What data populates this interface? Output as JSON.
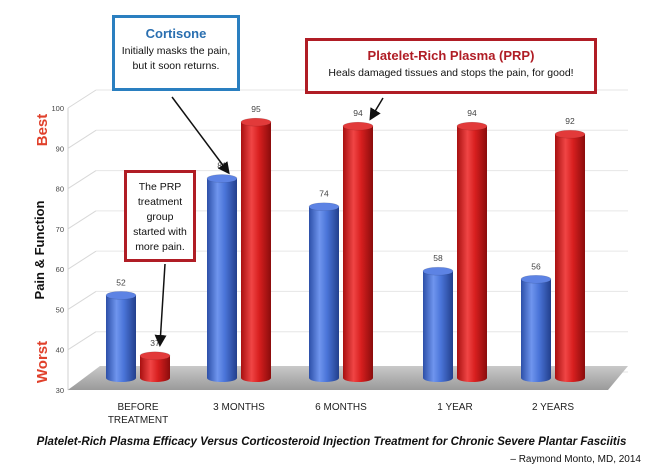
{
  "chart_data": {
    "type": "bar",
    "categories": [
      "BEFORE\nTREATMENT",
      "3 MONTHS",
      "6 MONTHS",
      "1 YEAR",
      "2 YEARS"
    ],
    "series": [
      {
        "name": "Cortisone",
        "values": [
          52,
          81,
          74,
          58,
          56
        ],
        "color": "#3f6fd8"
      },
      {
        "name": "Platelet-Rich Plasma (PRP)",
        "values": [
          37,
          95,
          94,
          94,
          92
        ],
        "color": "#d81f1f"
      }
    ],
    "ylim": [
      30,
      100
    ],
    "yticks": [
      30,
      40,
      50,
      60,
      70,
      80,
      90,
      100
    ],
    "ylabel": "Pain & Function",
    "ylabel_top": "Best",
    "ylabel_bottom": "Worst",
    "grid": true,
    "caption": "Platelet-Rich Plasma Efficacy Versus Corticosteroid Injection Treatment for Chronic Severe Plantar Fasciitis",
    "credit": "– Raymond Monto, MD, 2014"
  },
  "annotations": {
    "cortisone": {
      "title": "Cortisone",
      "body_line1": "Initially masks the pain,",
      "body_line2": "but it soon returns."
    },
    "prp": {
      "title": "Platelet-Rich Plasma (PRP)",
      "body": "Heals damaged tissues and stops the pain, for good!"
    },
    "note": {
      "line1": "The PRP",
      "line2": "treatment",
      "line3": "group",
      "line4": "started with",
      "line5": "more pain."
    }
  }
}
